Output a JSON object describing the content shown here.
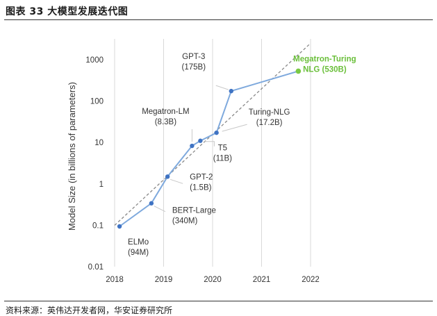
{
  "page": {
    "title": "图表 33 大模型发展迭代图",
    "source": "资料来源：英伟达开发者网，华安证券研究所"
  },
  "chart_data": {
    "type": "line",
    "title": "",
    "xlabel": "",
    "ylabel": "Model Size (in billions of parameters)",
    "y_scale": "log",
    "ylim": [
      0.01,
      1000
    ],
    "xlim": [
      2018,
      2022
    ],
    "x_ticks": [
      "2018",
      "2019",
      "2020",
      "2021",
      "2022"
    ],
    "y_ticks": [
      "0.01",
      "0.1",
      "1",
      "10",
      "100",
      "1000"
    ],
    "grid": "vertical",
    "trend_line": {
      "style": "dashed",
      "from": [
        2018,
        0.1
      ],
      "to": [
        2022,
        2500
      ]
    },
    "colors": {
      "line": "#7ea9dd",
      "point": "#3f73c3",
      "highlight": "#7ac943",
      "trend": "#888888"
    },
    "points": [
      {
        "x": 2018.1,
        "y": 0.094,
        "label": [
          "ELMo",
          "(94M)"
        ]
      },
      {
        "x": 2018.75,
        "y": 0.34,
        "label": [
          "BERT-Large",
          "(340M)"
        ]
      },
      {
        "x": 2019.08,
        "y": 1.5,
        "label": [
          "GPT-2",
          "(1.5B)"
        ]
      },
      {
        "x": 2019.58,
        "y": 8.3,
        "label": [
          "Megatron-LM",
          "(8.3B)"
        ]
      },
      {
        "x": 2019.75,
        "y": 11,
        "label": [
          "T5",
          "(11B)"
        ]
      },
      {
        "x": 2020.08,
        "y": 17.2,
        "label": [
          "Turing-NLG",
          "(17.2B)"
        ]
      },
      {
        "x": 2020.38,
        "y": 175,
        "label": [
          "GPT-3",
          "(175B)"
        ]
      },
      {
        "x": 2021.75,
        "y": 530,
        "label": [
          "Megatron-Turing",
          "NLG (530B)"
        ],
        "highlight": true
      }
    ]
  }
}
